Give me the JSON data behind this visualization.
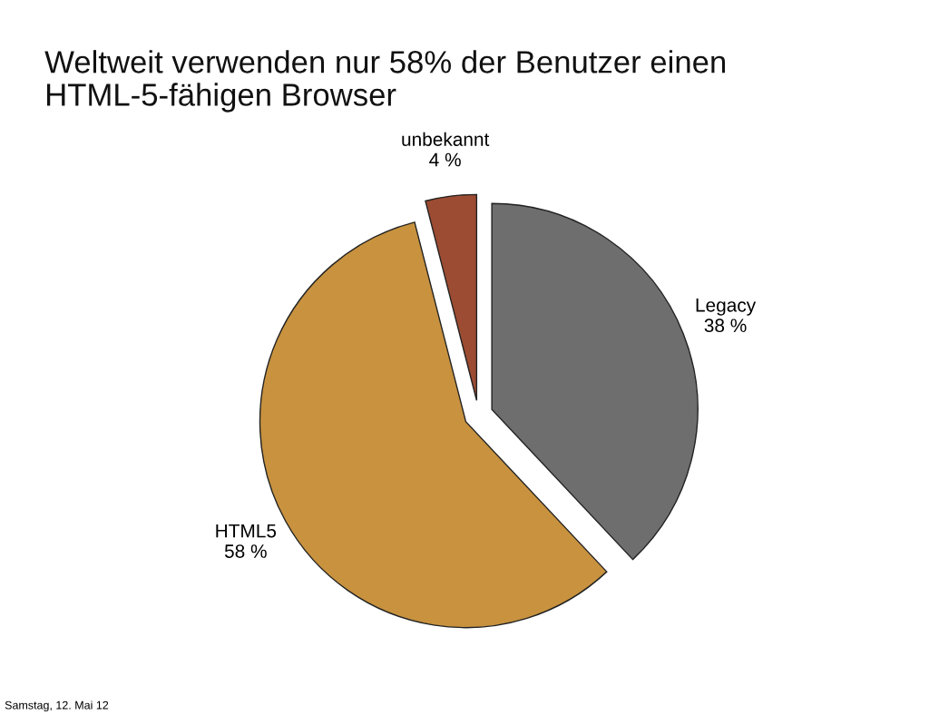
{
  "chart_data": {
    "type": "pie",
    "title": "Weltweit verwenden nur 58% der Benutzer einen\nHTML-5-fähigen Browser",
    "categories": [
      "Legacy",
      "HTML5",
      "unbekannt"
    ],
    "values": [
      38,
      58,
      4
    ],
    "value_labels": [
      "38 %",
      "58 %",
      "4 %"
    ],
    "colors": [
      "#6e6e6e",
      "#c8923f",
      "#9c4c32"
    ],
    "annotations": [
      "Samstag, 12. Mai 12"
    ]
  }
}
